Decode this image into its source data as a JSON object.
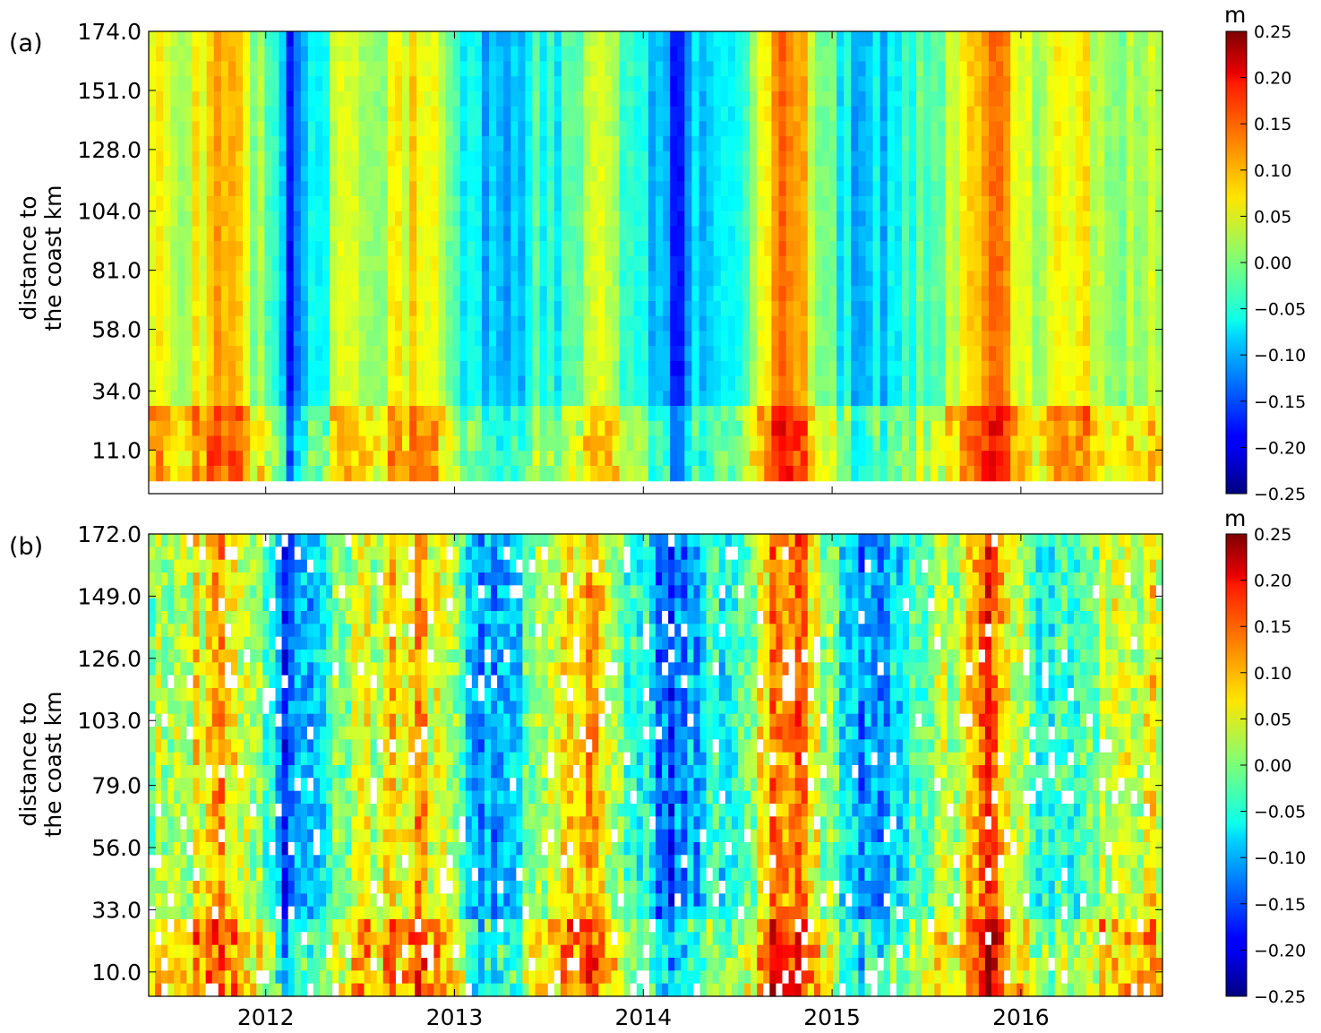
{
  "chart_data": [
    {
      "type": "heatmap",
      "panel_label": "(a)",
      "ylabel_line1": "distance to",
      "ylabel_line2": "the coast km",
      "yticks": [
        "174.0",
        "151.0",
        "128.0",
        "104.0",
        "81.0",
        "58.0",
        "34.0",
        "11.0"
      ],
      "ytick_values": [
        174,
        151,
        128,
        104,
        81,
        58,
        34,
        11
      ],
      "ylim": [
        -6,
        174
      ],
      "xticks": [],
      "xtick_values": [
        2012,
        2013,
        2014,
        2015,
        2016
      ],
      "xlim": [
        2011.38,
        2016.75
      ],
      "colorbar": {
        "unit": "m",
        "min": -0.25,
        "max": 0.25,
        "ticks": [
          "0.25",
          "0.20",
          "0.15",
          "0.10",
          "0.05",
          "0.00",
          "−0.05",
          "−0.10",
          "−0.15",
          "−0.20",
          "−0.25"
        ],
        "colormap": "jet"
      },
      "n_columns": 140,
      "n_rows": 30,
      "missing_data": false,
      "profile": [
        [
          2011.62,
          0.04
        ],
        [
          2011.78,
          0.09
        ],
        [
          2011.93,
          0.03
        ],
        [
          2012.04,
          -0.03
        ],
        [
          2012.12,
          -0.17
        ],
        [
          2012.22,
          -0.08
        ],
        [
          2012.4,
          0.02
        ],
        [
          2012.6,
          0.03
        ],
        [
          2012.8,
          0.07
        ],
        [
          2012.95,
          0.02
        ],
        [
          2013.1,
          -0.08
        ],
        [
          2013.2,
          -0.11
        ],
        [
          2013.32,
          -0.09
        ],
        [
          2013.45,
          -0.04
        ],
        [
          2013.55,
          -0.06
        ],
        [
          2013.7,
          0.04
        ],
        [
          2013.95,
          -0.02
        ],
        [
          2014.05,
          -0.1
        ],
        [
          2014.18,
          -0.16
        ],
        [
          2014.3,
          -0.08
        ],
        [
          2014.45,
          -0.05
        ],
        [
          2014.6,
          0.0
        ],
        [
          2014.72,
          0.14
        ],
        [
          2014.85,
          0.1
        ],
        [
          2014.95,
          0.0
        ],
        [
          2015.1,
          -0.09
        ],
        [
          2015.2,
          -0.1
        ],
        [
          2015.35,
          -0.05
        ],
        [
          2015.6,
          0.02
        ],
        [
          2015.75,
          0.07
        ],
        [
          2015.88,
          0.11
        ],
        [
          2016.05,
          0.02
        ],
        [
          2016.25,
          0.07
        ],
        [
          2016.45,
          0.03
        ],
        [
          2016.7,
          0.02
        ]
      ]
    },
    {
      "type": "heatmap",
      "panel_label": "(b)",
      "ylabel_line1": "distance to",
      "ylabel_line2": "the coast km",
      "yticks": [
        "172.0",
        "149.0",
        "126.0",
        "103.0",
        "79.0",
        "56.0",
        "33.0",
        "10.0"
      ],
      "ytick_values": [
        172,
        149,
        126,
        103,
        79,
        56,
        33,
        10
      ],
      "ylim": [
        1,
        172
      ],
      "xticks": [
        "2012",
        "2013",
        "2014",
        "2015",
        "2016"
      ],
      "xtick_values": [
        2012,
        2013,
        2014,
        2015,
        2016
      ],
      "xlim": [
        2011.38,
        2016.75
      ],
      "colorbar": {
        "unit": "m",
        "min": -0.25,
        "max": 0.25,
        "ticks": [
          "0.25",
          "0.20",
          "0.15",
          "0.10",
          "0.05",
          "0.00",
          "−0.05",
          "−0.10",
          "−0.15",
          "−0.20",
          "−0.25"
        ],
        "colormap": "jet"
      },
      "n_columns": 160,
      "n_rows": 36,
      "missing_data": true,
      "profile": [
        [
          2011.45,
          0.02
        ],
        [
          2011.62,
          0.05
        ],
        [
          2011.78,
          0.1
        ],
        [
          2011.93,
          0.03
        ],
        [
          2012.04,
          -0.04
        ],
        [
          2012.12,
          -0.17
        ],
        [
          2012.22,
          -0.08
        ],
        [
          2012.4,
          0.0
        ],
        [
          2012.6,
          0.05
        ],
        [
          2012.8,
          0.1
        ],
        [
          2012.95,
          0.03
        ],
        [
          2013.1,
          -0.07
        ],
        [
          2013.2,
          -0.12
        ],
        [
          2013.32,
          -0.08
        ],
        [
          2013.45,
          0.02
        ],
        [
          2013.6,
          0.06
        ],
        [
          2013.72,
          0.12
        ],
        [
          2013.85,
          0.02
        ],
        [
          2014.0,
          -0.06
        ],
        [
          2014.15,
          -0.16
        ],
        [
          2014.3,
          -0.08
        ],
        [
          2014.45,
          -0.04
        ],
        [
          2014.6,
          0.03
        ],
        [
          2014.72,
          0.15
        ],
        [
          2014.85,
          0.12
        ],
        [
          2014.95,
          0.02
        ],
        [
          2015.1,
          -0.09
        ],
        [
          2015.2,
          -0.12
        ],
        [
          2015.35,
          -0.06
        ],
        [
          2015.55,
          0.0
        ],
        [
          2015.72,
          0.07
        ],
        [
          2015.82,
          0.17
        ],
        [
          2015.95,
          0.05
        ],
        [
          2016.1,
          -0.04
        ],
        [
          2016.25,
          -0.06
        ],
        [
          2016.45,
          0.04
        ],
        [
          2016.7,
          0.05
        ]
      ]
    }
  ]
}
